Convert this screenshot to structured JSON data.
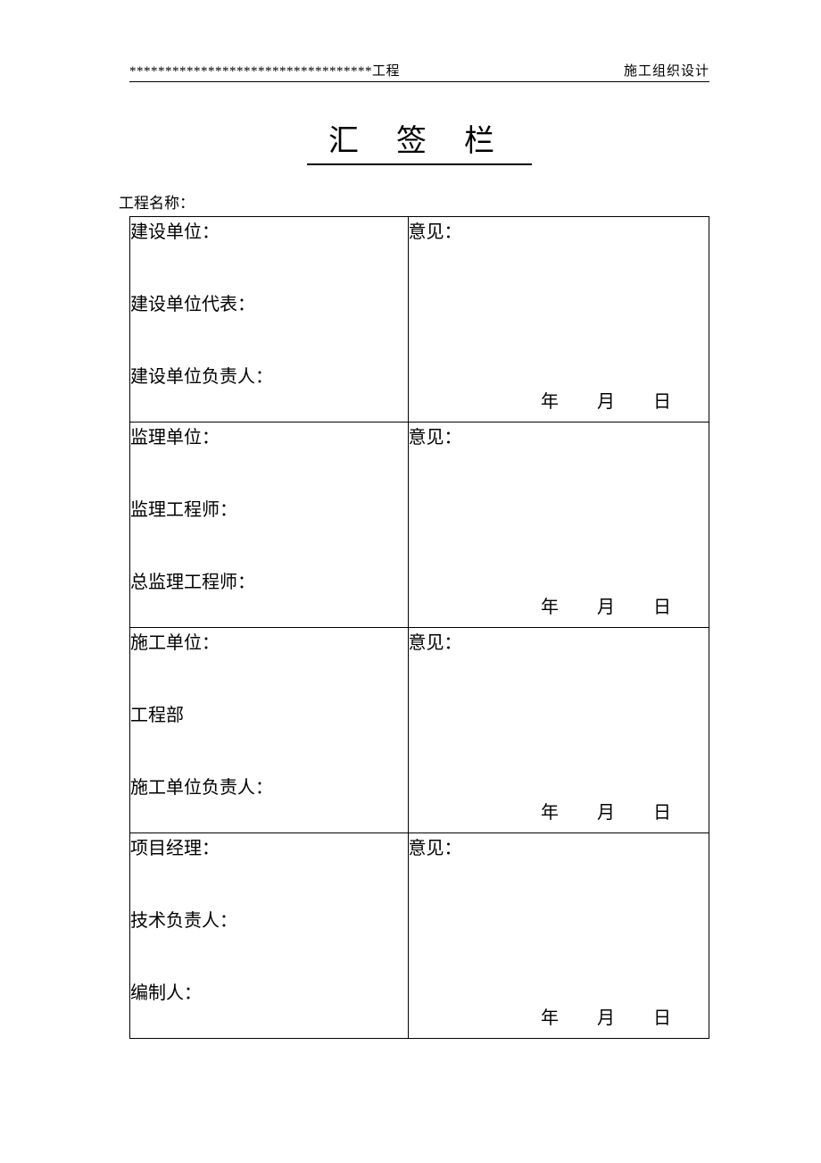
{
  "header": {
    "left": "**********************************工程",
    "right": "施工组织设计"
  },
  "title": "汇签栏",
  "project_name_label": "工程名称：",
  "opinion_label": "意见：",
  "date": {
    "year": "年",
    "month": "月",
    "day": "日"
  },
  "sections": [
    {
      "fields": [
        "建设单位：",
        "建设单位代表：",
        "建设单位负责人："
      ]
    },
    {
      "fields": [
        "监理单位：",
        "监理工程师：",
        "总监理工程师："
      ]
    },
    {
      "fields": [
        "施工单位：",
        "工程部",
        "施工单位负责人："
      ]
    },
    {
      "fields": [
        "项目经理：",
        "技术负责人：",
        "编制人："
      ]
    }
  ],
  "style": {
    "background_color": "#ffffff",
    "text_color": "#000000",
    "border_color": "#000000",
    "title_fontsize": 34,
    "body_fontsize": 20,
    "header_fontsize": 15,
    "letter_spacing_title": 42
  }
}
